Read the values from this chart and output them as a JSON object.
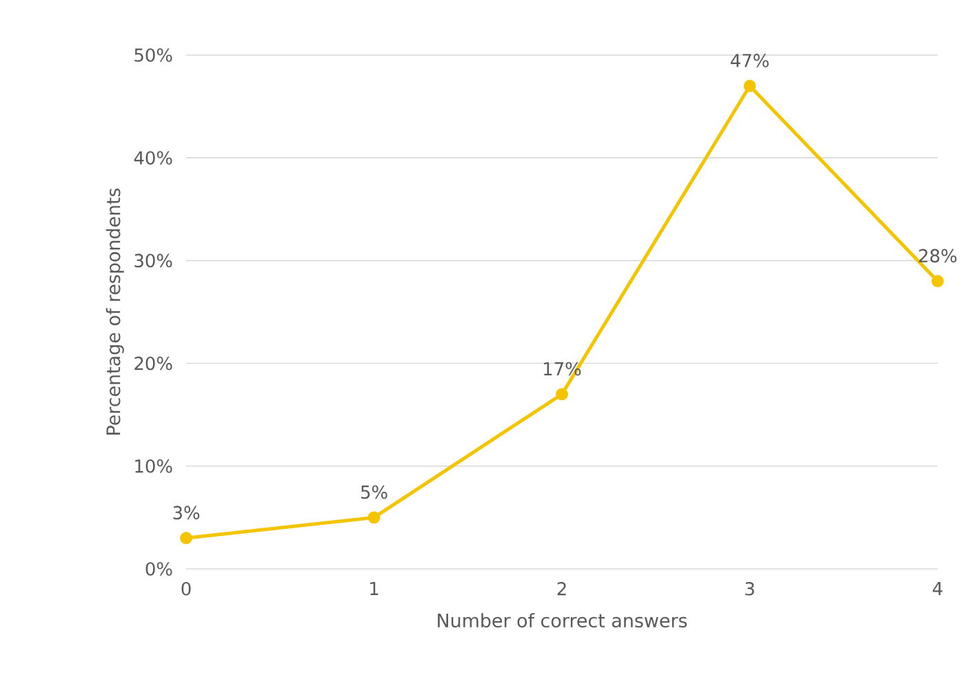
{
  "chart_data": {
    "type": "line",
    "xlabel": "Number of correct answers",
    "ylabel": "Percentage of respondents",
    "x": [
      0,
      1,
      2,
      3,
      4
    ],
    "series": [
      {
        "color": "#f5c400",
        "values": [
          3,
          5,
          17,
          47,
          28
        ],
        "value_labels": [
          "3%",
          "5%",
          "17%",
          "47%",
          "28%"
        ]
      }
    ],
    "xlim": [
      0,
      4
    ],
    "xticks": [
      0,
      1,
      2,
      3,
      4
    ],
    "ylim": [
      0,
      50
    ],
    "yticks": [
      {
        "value": 0,
        "label": "0%"
      },
      {
        "value": 10,
        "label": "10%"
      },
      {
        "value": 20,
        "label": "20%"
      },
      {
        "value": 30,
        "label": "30%"
      },
      {
        "value": 40,
        "label": "40%"
      },
      {
        "value": 50,
        "label": "50%"
      }
    ],
    "grid": "y",
    "marker": "circle",
    "line_style": "solid"
  }
}
